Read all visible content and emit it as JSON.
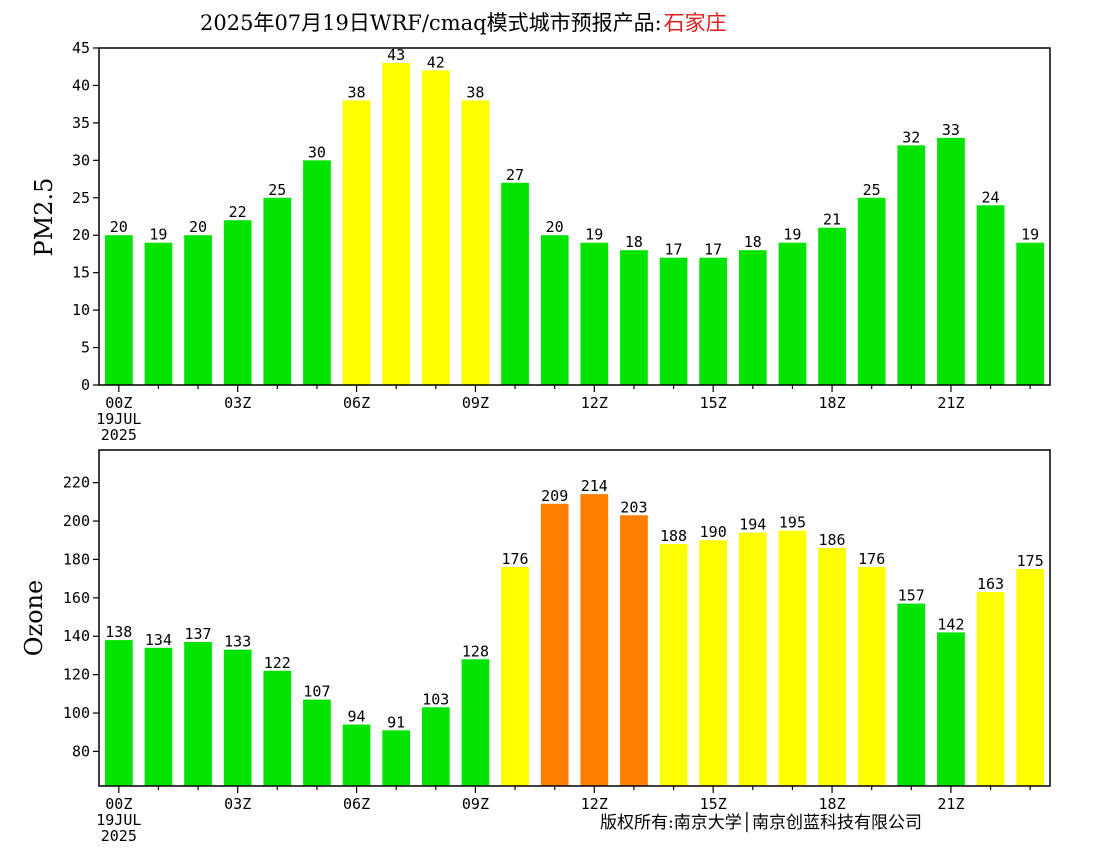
{
  "title": {
    "prefix": "2025年07月19日WRF/cmaq模式城市预报产品:",
    "city": "石家庄"
  },
  "copyright": "版权所有:南京大学│南京创蓝科技有限公司",
  "colors": {
    "green": "#00e400",
    "yellow": "#ffff00",
    "orange": "#ff7e00",
    "title_city": "#e02020"
  },
  "chart_data": [
    {
      "type": "bar",
      "ylabel": "PM2.5",
      "ylim": [
        0,
        45
      ],
      "yticks": [
        0,
        5,
        10,
        15,
        20,
        25,
        30,
        35,
        40,
        45
      ],
      "x_tick_labels": [
        {
          "index": 0,
          "lines": [
            "00Z",
            "19JUL",
            "2025"
          ]
        },
        {
          "index": 3,
          "lines": [
            "03Z"
          ]
        },
        {
          "index": 6,
          "lines": [
            "06Z"
          ]
        },
        {
          "index": 9,
          "lines": [
            "09Z"
          ]
        },
        {
          "index": 12,
          "lines": [
            "12Z"
          ]
        },
        {
          "index": 15,
          "lines": [
            "15Z"
          ]
        },
        {
          "index": 18,
          "lines": [
            "18Z"
          ]
        },
        {
          "index": 21,
          "lines": [
            "21Z"
          ]
        }
      ],
      "values": [
        20,
        19,
        20,
        22,
        25,
        30,
        38,
        43,
        42,
        38,
        27,
        20,
        19,
        18,
        17,
        17,
        18,
        19,
        21,
        25,
        32,
        33,
        24,
        19
      ],
      "bar_colors": [
        "green",
        "green",
        "green",
        "green",
        "green",
        "green",
        "yellow",
        "yellow",
        "yellow",
        "yellow",
        "green",
        "green",
        "green",
        "green",
        "green",
        "green",
        "green",
        "green",
        "green",
        "green",
        "green",
        "green",
        "green",
        "green"
      ]
    },
    {
      "type": "bar",
      "ylabel": "Ozone",
      "ylim": [
        62,
        237
      ],
      "yticks": [
        80,
        100,
        120,
        140,
        160,
        180,
        200,
        220
      ],
      "x_tick_labels": [
        {
          "index": 0,
          "lines": [
            "00Z",
            "19JUL",
            "2025"
          ]
        },
        {
          "index": 3,
          "lines": [
            "03Z"
          ]
        },
        {
          "index": 6,
          "lines": [
            "06Z"
          ]
        },
        {
          "index": 9,
          "lines": [
            "09Z"
          ]
        },
        {
          "index": 12,
          "lines": [
            "12Z"
          ]
        },
        {
          "index": 15,
          "lines": [
            "15Z"
          ]
        },
        {
          "index": 18,
          "lines": [
            "18Z"
          ]
        },
        {
          "index": 21,
          "lines": [
            "21Z"
          ]
        }
      ],
      "values": [
        138,
        134,
        137,
        133,
        122,
        107,
        94,
        91,
        103,
        128,
        176,
        209,
        214,
        203,
        188,
        190,
        194,
        195,
        186,
        176,
        157,
        142,
        163,
        175
      ],
      "bar_colors": [
        "green",
        "green",
        "green",
        "green",
        "green",
        "green",
        "green",
        "green",
        "green",
        "green",
        "yellow",
        "orange",
        "orange",
        "orange",
        "yellow",
        "yellow",
        "yellow",
        "yellow",
        "yellow",
        "yellow",
        "green",
        "green",
        "yellow",
        "yellow"
      ]
    }
  ]
}
